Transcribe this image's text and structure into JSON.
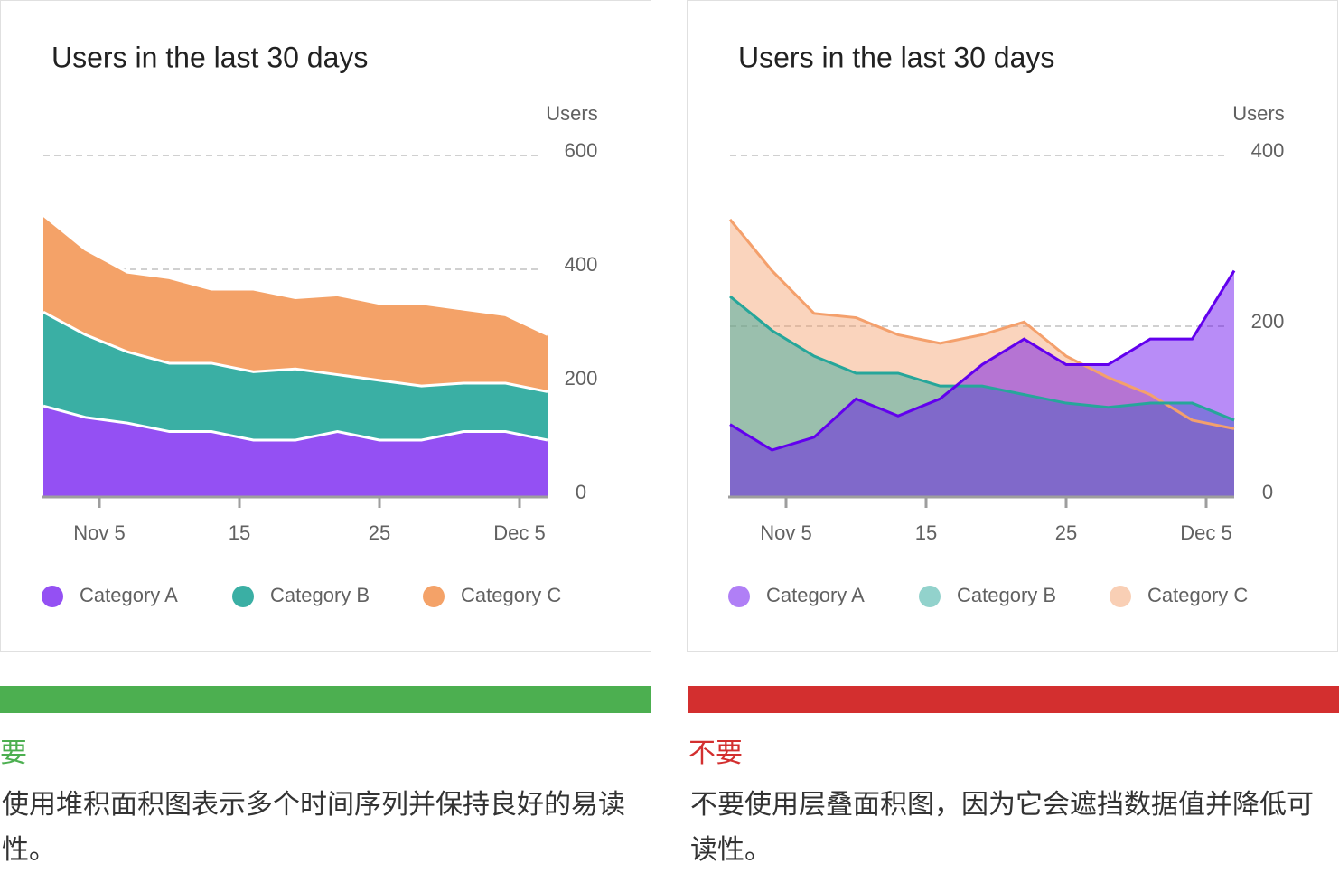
{
  "chart_data": [
    {
      "type": "stacked_area",
      "title": "Users in the last 30 days",
      "y_label": "Users",
      "x": [
        1,
        4,
        7,
        10,
        13,
        16,
        19,
        22,
        25,
        28,
        31,
        34,
        37
      ],
      "xlim": [
        1,
        37
      ],
      "xticks": [
        {
          "value": 5,
          "label": "Nov 5"
        },
        15,
        25,
        {
          "value": 35,
          "label": "Dec 5"
        }
      ],
      "ylim": [
        0,
        600
      ],
      "yticks": [
        0,
        200,
        400,
        600
      ],
      "grid": true,
      "legend": "bottom",
      "series": [
        {
          "name": "Category A",
          "color": "#9450f3",
          "values": [
            160,
            140,
            130,
            115,
            115,
            100,
            100,
            115,
            100,
            100,
            115,
            115,
            100
          ]
        },
        {
          "name": "Category B",
          "color": "#3aafa4",
          "values": [
            165,
            145,
            125,
            120,
            120,
            120,
            125,
            100,
            105,
            95,
            85,
            85,
            85
          ]
        },
        {
          "name": "Category C",
          "color": "#f4a268",
          "values": [
            170,
            150,
            140,
            150,
            130,
            145,
            125,
            140,
            135,
            145,
            130,
            120,
            100
          ]
        }
      ]
    },
    {
      "type": "area",
      "title": "Users in the last 30 days",
      "y_label": "Users",
      "x": [
        1,
        4,
        7,
        10,
        13,
        16,
        19,
        22,
        25,
        28,
        31,
        34,
        37
      ],
      "xlim": [
        1,
        37
      ],
      "xticks": [
        {
          "value": 5,
          "label": "Nov 5"
        },
        15,
        25,
        {
          "value": 35,
          "label": "Dec 5"
        }
      ],
      "ylim": [
        0,
        400
      ],
      "yticks": [
        0,
        200,
        400
      ],
      "grid": true,
      "legend": "bottom",
      "series": [
        {
          "name": "Category A",
          "color": "#6200ee",
          "values": [
            85,
            55,
            70,
            115,
            95,
            115,
            155,
            185,
            155,
            155,
            185,
            185,
            265
          ]
        },
        {
          "name": "Category B",
          "color": "#26a69a",
          "values": [
            235,
            195,
            165,
            145,
            145,
            130,
            130,
            120,
            110,
            105,
            110,
            110,
            90
          ]
        },
        {
          "name": "Category C",
          "color": "#f4a06c",
          "values": [
            325,
            265,
            215,
            210,
            190,
            180,
            190,
            205,
            165,
            140,
            120,
            90,
            80
          ]
        }
      ]
    }
  ],
  "guidance": [
    {
      "label": "要",
      "color": "#4caf50",
      "text": "使用堆积面积图表示多个时间序列并保持良好的易读性。"
    },
    {
      "label": "不要",
      "color": "#d32f2f",
      "text": "不要使用层叠面积图，因为它会遮挡数据值并降低可读性。"
    }
  ]
}
